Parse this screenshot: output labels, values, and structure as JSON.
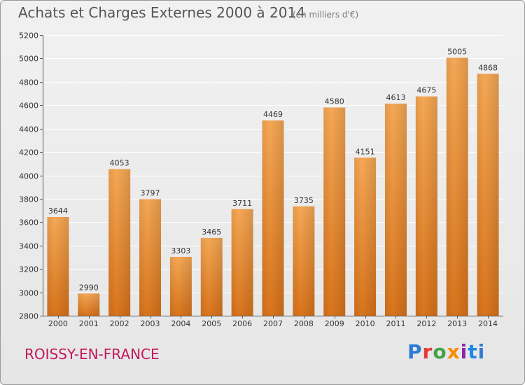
{
  "header": {
    "title": "Achats et Charges Externes 2000 à 2014",
    "subtitle": "(en milliers d'€)"
  },
  "footer": {
    "city": "ROISSY-EN-FRANCE",
    "logo": "Proxiti"
  },
  "colors": {
    "bar_light": "#f5a855",
    "bar_dark": "#d9741c",
    "grid": "#ffffff",
    "city_text": "#c2185b"
  },
  "chart_data": {
    "type": "bar",
    "title": "Achats et Charges Externes 2000 à 2014",
    "subtitle": "(en milliers d'€)",
    "xlabel": "",
    "ylabel": "",
    "categories": [
      "2000",
      "2001",
      "2002",
      "2003",
      "2004",
      "2005",
      "2006",
      "2007",
      "2008",
      "2009",
      "2010",
      "2011",
      "2012",
      "2013",
      "2014"
    ],
    "values": [
      3644,
      2990,
      4053,
      3797,
      3303,
      3465,
      3711,
      4469,
      3735,
      4580,
      4151,
      4613,
      4675,
      5005,
      4868
    ],
    "ylim": [
      2800,
      5200
    ],
    "yticks": [
      2800,
      3000,
      3200,
      3400,
      3600,
      3800,
      4000,
      4200,
      4400,
      4600,
      4800,
      5000,
      5200
    ],
    "grid": true,
    "legend": "none"
  }
}
